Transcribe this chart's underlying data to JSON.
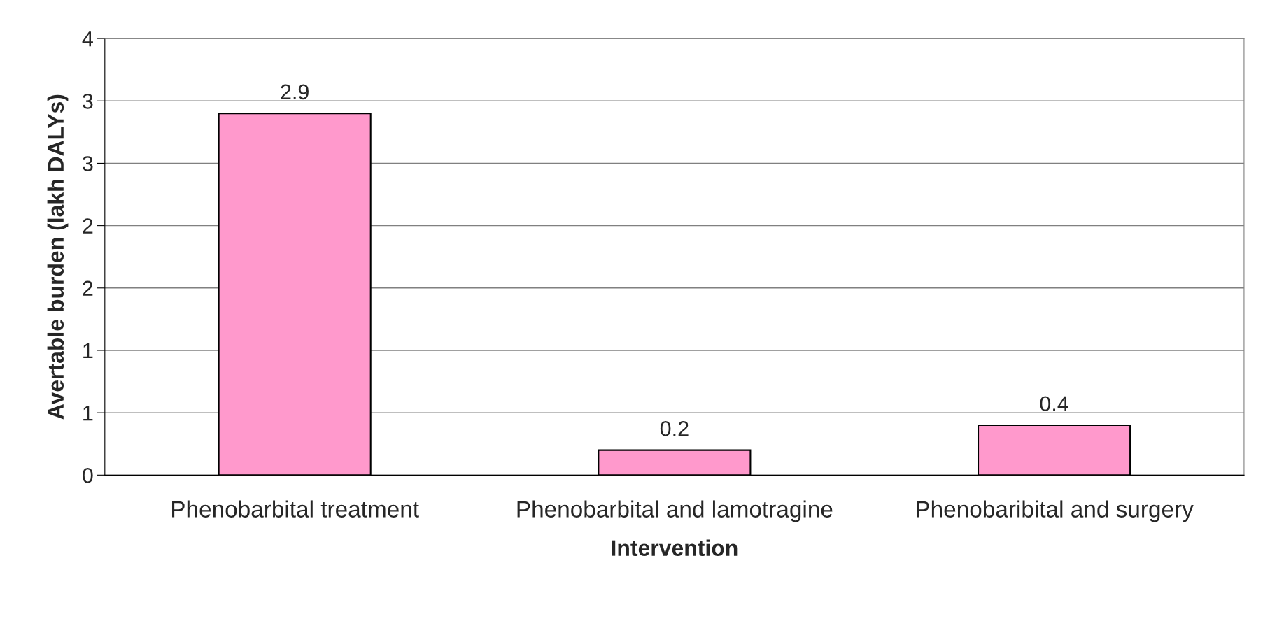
{
  "chart_data": {
    "type": "bar",
    "xlabel": "Intervention",
    "ylabel": "Avertable burden (lakh DALYs)",
    "categories": [
      "Phenobarbital treatment",
      "Phenobarbital and lamotragine",
      "Phenobaribital and surgery"
    ],
    "values": [
      2.9,
      0.2,
      0.4
    ],
    "color": "#ff99cc",
    "ylim": [
      0,
      3.5
    ],
    "yticks": [
      0,
      {
        "value": 0.5,
        "label": "1"
      },
      1,
      {
        "value": 1.5,
        "label": "2"
      },
      2,
      {
        "value": 2.5,
        "label": "3"
      },
      3,
      {
        "value": 3.5,
        "label": "4"
      }
    ],
    "grid": "y",
    "data_labels": true
  }
}
